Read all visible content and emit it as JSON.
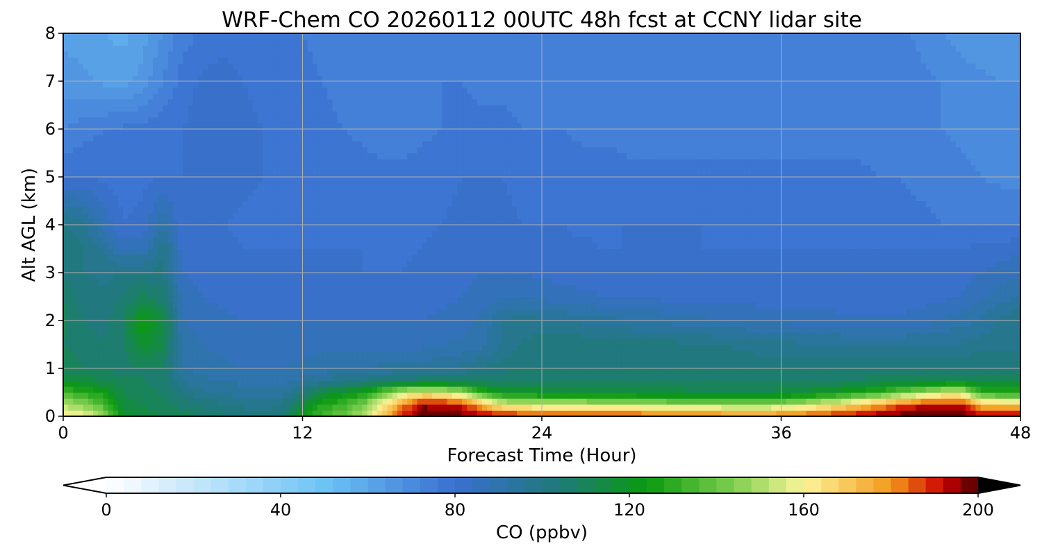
{
  "chart_data": {
    "type": "heatmap",
    "title": "WRF-Chem CO  20260112 00UTC 48h fcst at CCNY lidar site",
    "xlabel": "Forecast Time (Hour)",
    "ylabel": "Alt AGL (km)",
    "xlim": [
      0,
      48
    ],
    "ylim": [
      0,
      8
    ],
    "x_ticks": [
      "0",
      "12",
      "24",
      "36",
      "48"
    ],
    "y_ticks": [
      "0",
      "1",
      "2",
      "3",
      "4",
      "5",
      "6",
      "7",
      "8"
    ],
    "grid": true,
    "colorbar": {
      "label": "CO  (ppbv)",
      "vmin": 0,
      "vmax": 200,
      "extend": "both",
      "ticks": [
        "0",
        "40",
        "80",
        "120",
        "160",
        "200"
      ],
      "colors": [
        "#ffffff",
        "#6ec3f5",
        "#3a6fd1",
        "#1f7a78",
        "#0a9a10",
        "#7fcf50",
        "#fdf59a",
        "#f39a1c",
        "#cc0000",
        "#6b0000",
        "#000000"
      ],
      "color_positions": [
        0,
        0.25,
        0.4,
        0.52,
        0.62,
        0.72,
        0.8,
        0.9,
        0.96,
        0.99,
        1.0
      ]
    },
    "x_hours": [
      0,
      1,
      2,
      3,
      4,
      5,
      6,
      7,
      8,
      9,
      10,
      11,
      12,
      13,
      14,
      15,
      16,
      17,
      18,
      19,
      20,
      21,
      22,
      23,
      24,
      25,
      26,
      27,
      28,
      29,
      30,
      31,
      32,
      33,
      34,
      35,
      36,
      37,
      38,
      39,
      40,
      41,
      42,
      43,
      44,
      45,
      46,
      47,
      48
    ],
    "altitudes_km": [
      0,
      0.25,
      0.5,
      0.75,
      1,
      1.5,
      2,
      2.5,
      3,
      3.5,
      4,
      5,
      6,
      7,
      8
    ],
    "values_ppbv": [
      [
        165,
        160,
        150,
        120,
        115,
        112,
        110,
        108,
        105,
        103,
        102,
        105,
        125,
        135,
        140,
        150,
        170,
        190,
        200,
        200,
        198,
        196,
        194,
        193,
        192,
        192,
        192,
        192,
        191,
        190,
        189,
        188,
        187,
        186,
        185,
        185,
        186,
        188,
        191,
        193,
        195,
        198,
        200,
        200,
        200,
        200,
        196,
        195,
        195
      ],
      [
        150,
        145,
        135,
        115,
        112,
        110,
        106,
        103,
        101,
        99,
        98,
        100,
        115,
        128,
        133,
        142,
        160,
        180,
        195,
        194,
        190,
        175,
        158,
        155,
        154,
        154,
        153,
        152,
        151,
        150,
        149,
        148,
        147,
        146,
        145,
        145,
        148,
        152,
        157,
        162,
        170,
        178,
        185,
        190,
        193,
        192,
        175,
        170,
        170
      ],
      [
        135,
        130,
        125,
        112,
        110,
        108,
        100,
        97,
        95,
        94,
        93,
        94,
        103,
        115,
        120,
        125,
        140,
        155,
        160,
        158,
        150,
        132,
        122,
        120,
        119,
        118,
        118,
        117,
        116,
        115,
        114,
        114,
        113,
        112,
        112,
        112,
        114,
        117,
        120,
        124,
        128,
        133,
        140,
        148,
        155,
        158,
        132,
        128,
        128
      ],
      [
        118,
        115,
        112,
        110,
        108,
        106,
        96,
        93,
        92,
        91,
        90,
        90,
        93,
        97,
        99,
        102,
        104,
        106,
        108,
        108,
        107,
        106,
        106,
        106,
        107,
        107,
        107,
        107,
        107,
        107,
        107,
        107,
        107,
        107,
        107,
        107,
        107,
        107,
        108,
        108,
        109,
        110,
        111,
        112,
        113,
        114,
        114,
        113,
        113
      ],
      [
        110,
        108,
        107,
        107,
        108,
        108,
        92,
        90,
        89,
        88,
        88,
        88,
        89,
        90,
        91,
        92,
        93,
        93,
        94,
        95,
        97,
        100,
        103,
        104,
        104,
        104,
        104,
        104,
        104,
        104,
        104,
        104,
        104,
        103,
        103,
        103,
        103,
        103,
        103,
        103,
        104,
        104,
        104,
        104,
        104,
        104,
        104,
        104,
        104
      ],
      [
        108,
        106,
        104,
        107,
        118,
        112,
        90,
        88,
        87,
        86,
        86,
        86,
        86,
        87,
        87,
        87,
        87,
        87,
        87,
        88,
        89,
        91,
        96,
        100,
        103,
        103,
        103,
        103,
        102,
        102,
        102,
        101,
        101,
        100,
        99,
        98,
        98,
        97,
        97,
        96,
        96,
        96,
        96,
        96,
        96,
        97,
        98,
        99,
        99
      ],
      [
        110,
        104,
        103,
        108,
        125,
        115,
        88,
        86,
        85,
        84,
        84,
        84,
        84,
        84,
        84,
        84,
        84,
        84,
        84,
        85,
        86,
        89,
        96,
        98,
        97,
        96,
        95,
        94,
        93,
        92,
        91,
        90,
        89,
        88,
        88,
        87,
        87,
        86,
        86,
        85,
        85,
        85,
        85,
        86,
        88,
        90,
        93,
        97,
        100
      ],
      [
        108,
        102,
        101,
        104,
        110,
        106,
        86,
        84,
        83,
        82,
        82,
        82,
        82,
        82,
        82,
        82,
        82,
        82,
        82,
        83,
        84,
        85,
        88,
        88,
        87,
        86,
        85,
        84,
        84,
        83,
        83,
        82,
        82,
        82,
        82,
        82,
        82,
        82,
        82,
        82,
        82,
        82,
        82,
        82,
        83,
        84,
        87,
        90,
        92
      ],
      [
        104,
        100,
        99,
        100,
        101,
        101,
        84,
        83,
        82,
        81,
        81,
        81,
        81,
        81,
        81,
        80,
        80,
        80,
        81,
        82,
        83,
        84,
        84,
        84,
        83,
        82,
        82,
        81,
        81,
        81,
        81,
        81,
        81,
        81,
        81,
        81,
        81,
        81,
        81,
        81,
        81,
        81,
        81,
        81,
        81,
        82,
        84,
        86,
        87
      ],
      [
        102,
        100,
        95,
        88,
        87,
        100,
        82,
        82,
        81,
        80,
        80,
        80,
        80,
        80,
        80,
        80,
        79,
        79,
        80,
        81,
        82,
        83,
        83,
        82,
        82,
        81,
        81,
        80,
        80,
        80,
        80,
        80,
        80,
        80,
        80,
        80,
        80,
        80,
        80,
        80,
        80,
        80,
        80,
        80,
        80,
        80,
        81,
        82,
        83
      ],
      [
        100,
        98,
        88,
        80,
        81,
        92,
        80,
        81,
        80,
        79,
        79,
        79,
        79,
        79,
        78,
        78,
        78,
        78,
        79,
        80,
        81,
        81,
        81,
        80,
        80,
        80,
        79,
        79,
        80,
        80,
        80,
        80,
        80,
        79,
        79,
        79,
        79,
        79,
        79,
        78,
        78,
        78,
        77,
        77,
        76,
        76,
        76,
        76,
        76
      ],
      [
        80,
        80,
        79,
        78,
        79,
        80,
        80,
        82,
        82,
        81,
        80,
        79,
        79,
        79,
        78,
        78,
        77,
        77,
        78,
        79,
        80,
        80,
        80,
        79,
        79,
        78,
        78,
        78,
        77,
        77,
        77,
        77,
        77,
        77,
        77,
        77,
        77,
        77,
        77,
        77,
        77,
        76,
        76,
        75,
        74,
        73,
        72,
        71,
        71
      ],
      [
        72,
        74,
        76,
        77,
        78,
        79,
        80,
        82,
        84,
        82,
        80,
        79,
        78,
        77,
        76,
        75,
        74,
        74,
        75,
        76,
        77,
        77,
        77,
        76,
        76,
        76,
        75,
        75,
        75,
        74,
        74,
        74,
        74,
        74,
        74,
        74,
        74,
        74,
        74,
        74,
        74,
        74,
        74,
        73,
        72,
        71,
        70,
        70,
        70
      ],
      [
        66,
        65,
        63,
        62,
        66,
        72,
        78,
        81,
        82,
        80,
        78,
        77,
        77,
        76,
        75,
        74,
        74,
        75,
        76,
        76,
        76,
        75,
        75,
        74,
        74,
        74,
        73,
        73,
        73,
        73,
        73,
        73,
        73,
        73,
        73,
        73,
        73,
        73,
        73,
        73,
        73,
        74,
        74,
        73,
        72,
        70,
        69,
        68,
        68
      ],
      [
        63,
        62,
        60,
        59,
        62,
        68,
        74,
        77,
        78,
        77,
        76,
        76,
        76,
        75,
        74,
        73,
        73,
        74,
        75,
        75,
        75,
        74,
        74,
        73,
        73,
        73,
        72,
        72,
        72,
        72,
        72,
        72,
        72,
        72,
        72,
        72,
        72,
        72,
        72,
        72,
        72,
        73,
        73,
        71,
        68,
        66,
        65,
        65,
        65
      ]
    ]
  }
}
